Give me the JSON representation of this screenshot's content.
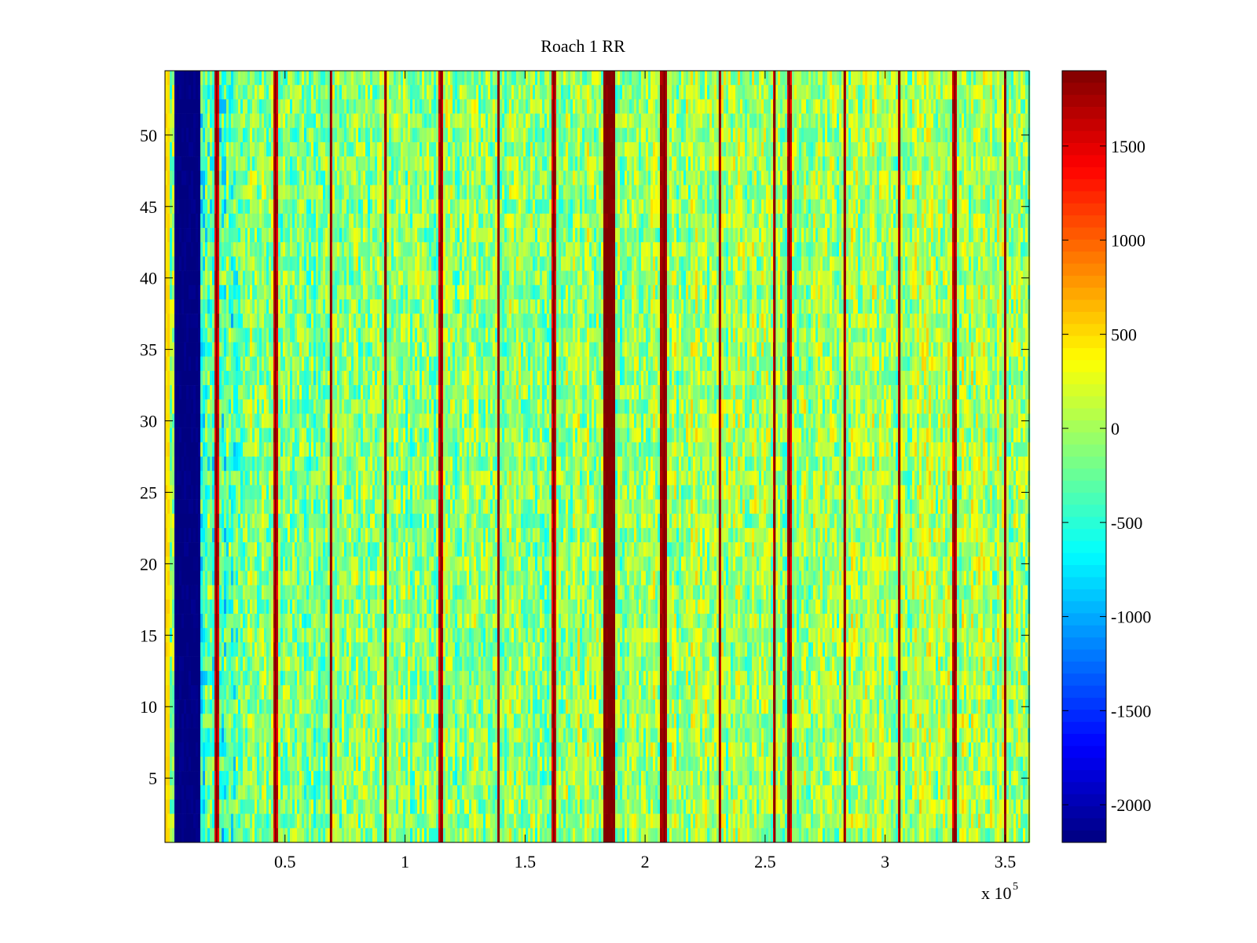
{
  "chart_data": {
    "type": "heatmap",
    "title": "Roach 1 RR",
    "xlabel": "",
    "ylabel": "",
    "x_multiplier_label": "x 10",
    "x_multiplier_exponent": "5",
    "xlim": [
      0,
      360000
    ],
    "ylim": [
      0.5,
      54.5
    ],
    "x_ticks": [
      0.5,
      1,
      1.5,
      2,
      2.5,
      3,
      3.5
    ],
    "x_tick_labels": [
      "0.5",
      "1",
      "1.5",
      "2",
      "2.5",
      "3",
      "3.5"
    ],
    "y_ticks": [
      5,
      10,
      15,
      20,
      25,
      30,
      35,
      40,
      45,
      50
    ],
    "y_tick_labels": [
      "5",
      "10",
      "15",
      "20",
      "25",
      "30",
      "35",
      "40",
      "45",
      "50"
    ],
    "colormap": "jet",
    "clim": [
      -2200,
      1900
    ],
    "colorbar_ticks": [
      1500,
      1000,
      500,
      0,
      -500,
      -1000,
      -1500,
      -2000
    ],
    "colorbar_tick_labels": [
      "1500",
      "1000",
      "500",
      "0",
      "-500",
      "-1000",
      "-1500",
      "-2000"
    ],
    "rows": 54,
    "background_level": 0,
    "background_noise_range": [
      -550,
      350
    ],
    "low_region": {
      "x_range": [
        4000,
        15000
      ],
      "value": -2200
    },
    "left_edge_strip": {
      "x_range": [
        0,
        1500
      ],
      "value": 500
    },
    "bright_lines_x": [
      21500,
      46000,
      69000,
      92000,
      115000,
      139000,
      162000,
      185000,
      208000,
      231000,
      254000,
      260000,
      283000,
      306000,
      329000,
      350000
    ],
    "strong_bands": [
      {
        "x_range": [
          183000,
          187500
        ],
        "value": 1900
      },
      {
        "x_range": [
          206500,
          209500
        ],
        "value": 1750
      }
    ]
  }
}
